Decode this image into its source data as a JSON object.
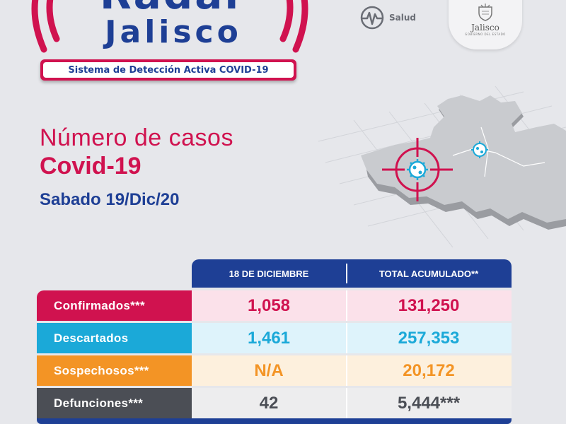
{
  "brand": {
    "title": "Radar",
    "subtitle": "Jalisco",
    "tagline": "Sistema de Detección Activa COVID-19",
    "salud_label": "Salud",
    "gov_name": "Jalisco",
    "gov_sub": "GOBIERNO DEL ESTADO"
  },
  "headline": {
    "line1": "Número de casos",
    "line2": "Covid-19",
    "date": "Sabado 19/Dic/20"
  },
  "table": {
    "col_day": "18 DE DICIEMBRE",
    "col_total": "TOTAL ACUMULADO**",
    "rows": [
      {
        "label": "Confirmados***",
        "day": "1,058",
        "total": "131,250"
      },
      {
        "label": "Descartados",
        "day": "1,461",
        "total": "257,353"
      },
      {
        "label": "Sospechosos***",
        "day": "N/A",
        "total": "20,172"
      },
      {
        "label": "Defunciones***",
        "day": "42",
        "total": "5,444***"
      }
    ]
  },
  "colors": {
    "brand_blue": "#1e3f95",
    "brand_red": "#d0124f",
    "descartados": "#1ba9d8",
    "sospechosos": "#f39425",
    "defunciones": "#4b4e55"
  },
  "icons": [
    "radar-waves-icon",
    "salud-logo-icon",
    "state-seal-icon",
    "target-crosshair-icon",
    "virus-icon",
    "jalisco-map-icon"
  ]
}
